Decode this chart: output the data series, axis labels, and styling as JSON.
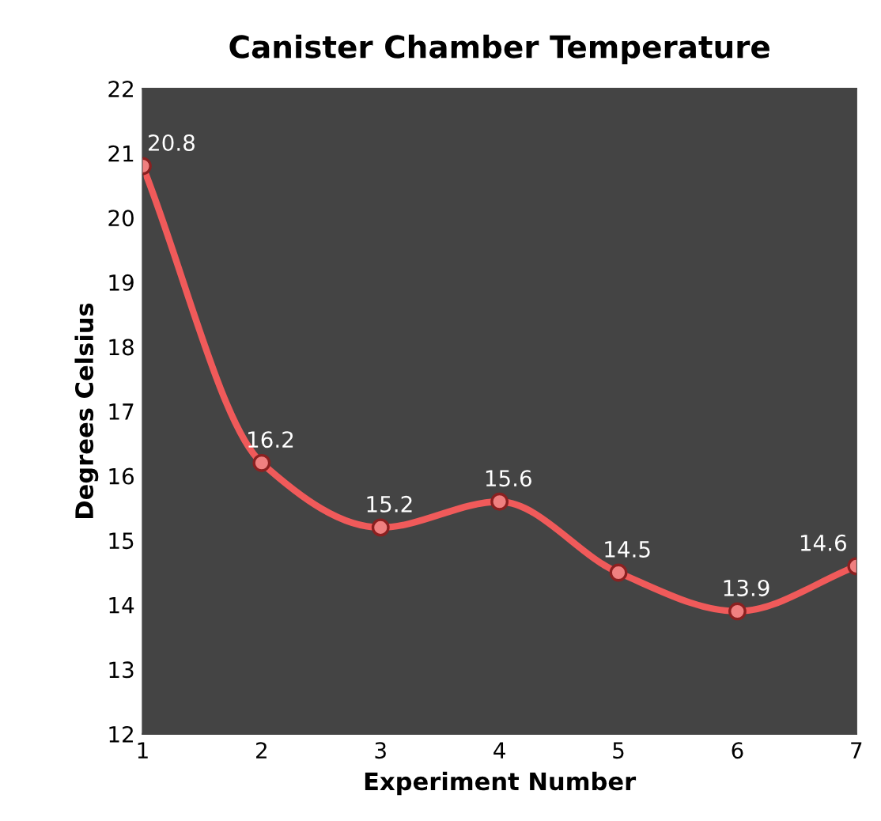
{
  "chart_data": {
    "type": "line",
    "title": "Canister Chamber Temperature",
    "xlabel": "Experiment Number",
    "ylabel": "Degrees Celsius",
    "x": [
      1,
      2,
      3,
      4,
      5,
      6,
      7
    ],
    "series": [
      {
        "color": "#f05a5a",
        "values": [
          20.8,
          16.2,
          15.2,
          15.6,
          14.5,
          13.9,
          14.6
        ]
      }
    ],
    "xlim": [
      1,
      7
    ],
    "xticks": [
      1,
      2,
      3,
      4,
      5,
      6,
      7
    ],
    "ylim": [
      12,
      22
    ],
    "yticks": [
      12,
      13,
      14,
      15,
      16,
      17,
      18,
      19,
      20,
      21,
      22
    ],
    "data_labels": true,
    "marker": "circle",
    "line_style": "solid",
    "grid": false,
    "legend": false
  }
}
